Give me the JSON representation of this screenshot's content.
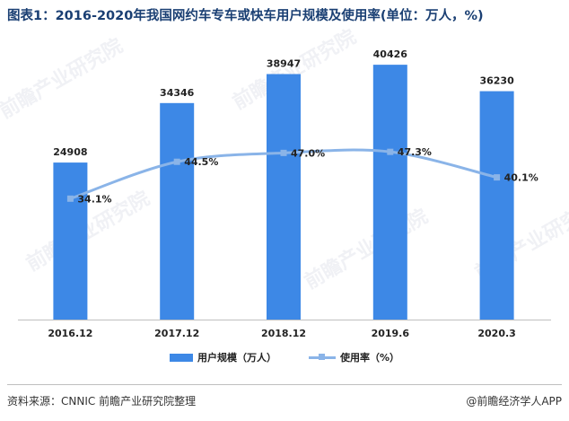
{
  "header": {
    "title": "图表1：2016-2020年我国网约车专车或快车用户规模及使用率(单位：万人，%)"
  },
  "chart_data": {
    "type": "bar",
    "categories": [
      "2016.12",
      "2017.12",
      "2018.12",
      "2019.6",
      "2020.3"
    ],
    "series": [
      {
        "name": "用户规模（万人）",
        "type": "bar",
        "axis": "left",
        "values": [
          24908,
          34346,
          38947,
          40426,
          36230
        ],
        "labels": [
          "24908",
          "34346",
          "38947",
          "40426",
          "36230"
        ],
        "color": "#3d88e6"
      },
      {
        "name": "使用率（%）",
        "type": "line",
        "axis": "right",
        "values": [
          34.1,
          44.5,
          47.0,
          47.3,
          40.1
        ],
        "labels": [
          "34.1%",
          "44.5%",
          "47.0%",
          "47.3%",
          "40.1%"
        ],
        "color": "#8ab4e8"
      }
    ],
    "ylim_left": [
      0,
      45000
    ],
    "ylim_right": [
      0,
      80
    ],
    "grid": false,
    "legend": "bottom"
  },
  "footer": {
    "source": "资料来源：CNNIC 前瞻产业研究院整理",
    "brand": "@前瞻经济学人APP"
  },
  "watermark": {
    "text": "前瞻产业研究院"
  }
}
